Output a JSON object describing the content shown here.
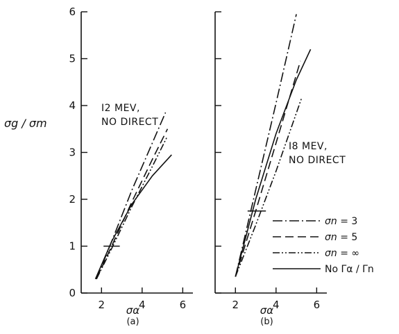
{
  "ylabel": "σg / σm",
  "legend": [
    {
      "sym": "σn",
      "text": "= 3",
      "dash": "14 4 2 4"
    },
    {
      "sym": "σn",
      "text": "= 5",
      "dash": "12 6"
    },
    {
      "sym": "σn",
      "text": "= ∞",
      "dash": "10 3 2 3 2 3"
    },
    {
      "sym": "",
      "text": "No Γα / Γn",
      "dash": ""
    }
  ],
  "chart_data": [
    {
      "type": "line",
      "caption": "(a)",
      "xlabel": "σα",
      "annotation": [
        "I2 MEV,",
        "NO DIRECT"
      ],
      "xlim": [
        1,
        6.5
      ],
      "ylim": [
        0,
        6
      ],
      "xticks": [
        2,
        4,
        6
      ],
      "yticks": [
        0,
        1,
        2,
        3,
        4,
        5,
        6
      ],
      "marker": {
        "x": [
          2.1,
          2.9
        ],
        "y": 1.0
      },
      "series": [
        {
          "dash": "14 4 2 4",
          "x": [
            1.75,
            2.5,
            3.5,
            4.5,
            5.15
          ],
          "y": [
            0.3,
            1.1,
            2.2,
            3.2,
            3.85
          ]
        },
        {
          "dash": "12 6",
          "x": [
            1.75,
            2.5,
            3.5,
            4.5,
            5.25
          ],
          "y": [
            0.3,
            1.0,
            1.95,
            2.85,
            3.5
          ]
        },
        {
          "dash": "10 3 2 3 2 3",
          "x": [
            1.75,
            2.5,
            3.5,
            4.5,
            5.25
          ],
          "y": [
            0.3,
            0.95,
            1.85,
            2.7,
            3.35
          ]
        },
        {
          "dash": "",
          "x": [
            1.7,
            2.5,
            3.5,
            4.5,
            5.45
          ],
          "y": [
            0.3,
            1.1,
            1.9,
            2.5,
            2.95
          ]
        }
      ]
    },
    {
      "type": "line",
      "caption": "(b)",
      "xlabel": "σα",
      "annotation": [
        "I8 MEV,",
        "NO DIRECT"
      ],
      "xlim": [
        1,
        6.5
      ],
      "ylim": [
        0,
        6
      ],
      "xticks": [
        2,
        4,
        6
      ],
      "yticks": [
        0,
        1,
        2,
        3,
        4,
        5,
        6
      ],
      "marker": {
        "x": [
          2.6,
          3.5
        ],
        "y": 1.75
      },
      "series": [
        {
          "dash": "14 4 2 4",
          "x": [
            2.0,
            3.0,
            4.0,
            5.0
          ],
          "y": [
            0.35,
            2.2,
            4.05,
            5.95
          ]
        },
        {
          "dash": "12 6",
          "x": [
            2.0,
            3.0,
            4.0,
            5.2
          ],
          "y": [
            0.35,
            1.75,
            3.2,
            4.95
          ]
        },
        {
          "dash": "10 3 2 3 2 3",
          "x": [
            2.0,
            3.0,
            4.0,
            5.25
          ],
          "y": [
            0.35,
            1.45,
            2.6,
            4.15
          ]
        },
        {
          "dash": "",
          "x": [
            2.0,
            3.0,
            4.0,
            5.0,
            5.7
          ],
          "y": [
            0.35,
            2.0,
            3.4,
            4.55,
            5.2
          ]
        }
      ]
    }
  ]
}
